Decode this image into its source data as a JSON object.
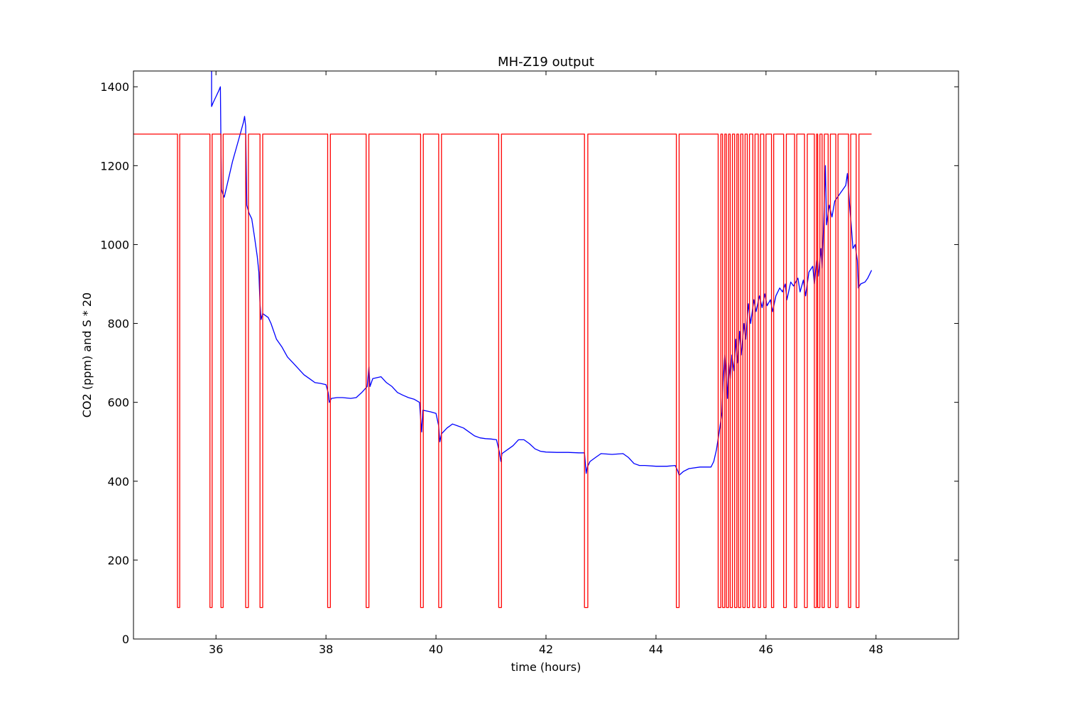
{
  "chart_data": {
    "type": "line",
    "title": "MH-Z19 output",
    "xlabel": "time (hours)",
    "ylabel": "CO2 (ppm) and S * 20",
    "xlim": [
      34.5,
      49.5
    ],
    "ylim": [
      0,
      1440
    ],
    "xticks": [
      36,
      38,
      40,
      42,
      44,
      46,
      48
    ],
    "yticks": [
      0,
      200,
      400,
      600,
      800,
      1000,
      1200,
      1400
    ],
    "grid": false,
    "legend": "none",
    "series": [
      {
        "color": "#0000ff",
        "points": [
          [
            35.92,
            1440
          ],
          [
            35.92,
            1350
          ],
          [
            35.95,
            1360
          ],
          [
            36.0,
            1375
          ],
          [
            36.05,
            1390
          ],
          [
            36.08,
            1400
          ],
          [
            36.09,
            1250
          ],
          [
            36.1,
            1140
          ],
          [
            36.12,
            1130
          ],
          [
            36.15,
            1120
          ],
          [
            36.2,
            1150
          ],
          [
            36.3,
            1210
          ],
          [
            36.4,
            1260
          ],
          [
            36.5,
            1310
          ],
          [
            36.52,
            1325
          ],
          [
            36.54,
            1300
          ],
          [
            36.56,
            1100
          ],
          [
            36.6,
            1080
          ],
          [
            36.65,
            1065
          ],
          [
            36.7,
            1020
          ],
          [
            36.75,
            970
          ],
          [
            36.78,
            930
          ],
          [
            36.8,
            850
          ],
          [
            36.82,
            810
          ],
          [
            36.85,
            825
          ],
          [
            36.95,
            815
          ],
          [
            37.0,
            800
          ],
          [
            37.1,
            760
          ],
          [
            37.2,
            740
          ],
          [
            37.3,
            715
          ],
          [
            37.4,
            700
          ],
          [
            37.5,
            685
          ],
          [
            37.6,
            670
          ],
          [
            37.7,
            660
          ],
          [
            37.8,
            650
          ],
          [
            37.9,
            648
          ],
          [
            38.0,
            645
          ],
          [
            38.04,
            625
          ],
          [
            38.06,
            600
          ],
          [
            38.1,
            610
          ],
          [
            38.2,
            612
          ],
          [
            38.3,
            612
          ],
          [
            38.45,
            610
          ],
          [
            38.55,
            612
          ],
          [
            38.65,
            625
          ],
          [
            38.75,
            640
          ],
          [
            38.78,
            690
          ],
          [
            38.8,
            640
          ],
          [
            38.85,
            660
          ],
          [
            39.0,
            665
          ],
          [
            39.1,
            650
          ],
          [
            39.2,
            640
          ],
          [
            39.3,
            625
          ],
          [
            39.4,
            618
          ],
          [
            39.5,
            612
          ],
          [
            39.6,
            608
          ],
          [
            39.7,
            600
          ],
          [
            39.72,
            560
          ],
          [
            39.74,
            525
          ],
          [
            39.76,
            580
          ],
          [
            39.9,
            576
          ],
          [
            40.0,
            572
          ],
          [
            40.05,
            540
          ],
          [
            40.07,
            500
          ],
          [
            40.1,
            520
          ],
          [
            40.2,
            535
          ],
          [
            40.3,
            545
          ],
          [
            40.4,
            540
          ],
          [
            40.5,
            535
          ],
          [
            40.6,
            525
          ],
          [
            40.7,
            515
          ],
          [
            40.8,
            510
          ],
          [
            40.9,
            508
          ],
          [
            41.0,
            507
          ],
          [
            41.1,
            505
          ],
          [
            41.15,
            475
          ],
          [
            41.18,
            450
          ],
          [
            41.2,
            470
          ],
          [
            41.3,
            480
          ],
          [
            41.4,
            490
          ],
          [
            41.5,
            505
          ],
          [
            41.6,
            505
          ],
          [
            41.7,
            495
          ],
          [
            41.8,
            482
          ],
          [
            41.9,
            476
          ],
          [
            42.0,
            474
          ],
          [
            42.2,
            473
          ],
          [
            42.4,
            473
          ],
          [
            42.6,
            472
          ],
          [
            42.7,
            472
          ],
          [
            42.73,
            420
          ],
          [
            42.75,
            435
          ],
          [
            42.8,
            450
          ],
          [
            42.9,
            460
          ],
          [
            43.0,
            470
          ],
          [
            43.2,
            468
          ],
          [
            43.4,
            470
          ],
          [
            43.5,
            460
          ],
          [
            43.6,
            445
          ],
          [
            43.7,
            440
          ],
          [
            43.8,
            440
          ],
          [
            44.0,
            438
          ],
          [
            44.2,
            438
          ],
          [
            44.35,
            440
          ],
          [
            44.4,
            425
          ],
          [
            44.42,
            415
          ],
          [
            44.5,
            425
          ],
          [
            44.6,
            432
          ],
          [
            44.8,
            436
          ],
          [
            45.0,
            436
          ],
          [
            45.05,
            450
          ],
          [
            45.1,
            480
          ],
          [
            45.15,
            525
          ],
          [
            45.2,
            575
          ],
          [
            45.22,
            650
          ],
          [
            45.25,
            720
          ],
          [
            45.28,
            660
          ],
          [
            45.3,
            610
          ],
          [
            45.32,
            700
          ],
          [
            45.35,
            660
          ],
          [
            45.38,
            720
          ],
          [
            45.42,
            680
          ],
          [
            45.45,
            760
          ],
          [
            45.48,
            700
          ],
          [
            45.52,
            780
          ],
          [
            45.55,
            720
          ],
          [
            45.6,
            800
          ],
          [
            45.63,
            760
          ],
          [
            45.68,
            850
          ],
          [
            45.72,
            800
          ],
          [
            45.78,
            860
          ],
          [
            45.82,
            830
          ],
          [
            45.88,
            870
          ],
          [
            45.93,
            840
          ],
          [
            45.98,
            875
          ],
          [
            46.02,
            845
          ],
          [
            46.08,
            860
          ],
          [
            46.12,
            830
          ],
          [
            46.18,
            870
          ],
          [
            46.25,
            890
          ],
          [
            46.3,
            880
          ],
          [
            46.35,
            900
          ],
          [
            46.38,
            860
          ],
          [
            46.45,
            905
          ],
          [
            46.5,
            895
          ],
          [
            46.58,
            915
          ],
          [
            46.62,
            880
          ],
          [
            46.68,
            910
          ],
          [
            46.72,
            870
          ],
          [
            46.78,
            930
          ],
          [
            46.85,
            945
          ],
          [
            46.88,
            900
          ],
          [
            46.92,
            960
          ],
          [
            46.95,
            920
          ],
          [
            47.0,
            990
          ],
          [
            47.02,
            940
          ],
          [
            47.05,
            1060
          ],
          [
            47.08,
            1200
          ],
          [
            47.1,
            1050
          ],
          [
            47.15,
            1100
          ],
          [
            47.2,
            1070
          ],
          [
            47.25,
            1110
          ],
          [
            47.3,
            1120
          ],
          [
            47.35,
            1130
          ],
          [
            47.4,
            1140
          ],
          [
            47.45,
            1150
          ],
          [
            47.48,
            1180
          ],
          [
            47.52,
            1100
          ],
          [
            47.55,
            1050
          ],
          [
            47.58,
            990
          ],
          [
            47.62,
            1000
          ],
          [
            47.66,
            960
          ],
          [
            47.68,
            890
          ],
          [
            47.72,
            900
          ],
          [
            47.8,
            905
          ],
          [
            47.85,
            915
          ],
          [
            47.92,
            935
          ]
        ]
      },
      {
        "color": "#ff0000",
        "points": [
          [
            34.5,
            1280
          ],
          [
            35.3,
            1280
          ],
          [
            35.3,
            80
          ],
          [
            35.34,
            80
          ],
          [
            35.34,
            1280
          ],
          [
            35.89,
            1280
          ],
          [
            35.89,
            80
          ],
          [
            35.93,
            80
          ],
          [
            35.93,
            1280
          ],
          [
            36.09,
            1280
          ],
          [
            36.09,
            80
          ],
          [
            36.13,
            80
          ],
          [
            36.13,
            1280
          ],
          [
            36.54,
            1280
          ],
          [
            36.54,
            80
          ],
          [
            36.59,
            80
          ],
          [
            36.59,
            1280
          ],
          [
            36.8,
            1280
          ],
          [
            36.8,
            80
          ],
          [
            36.85,
            80
          ],
          [
            36.85,
            1280
          ],
          [
            38.03,
            1280
          ],
          [
            38.03,
            80
          ],
          [
            38.08,
            80
          ],
          [
            38.08,
            1280
          ],
          [
            38.73,
            1280
          ],
          [
            38.73,
            80
          ],
          [
            38.78,
            80
          ],
          [
            38.78,
            1280
          ],
          [
            39.72,
            1280
          ],
          [
            39.72,
            80
          ],
          [
            39.77,
            80
          ],
          [
            39.77,
            1280
          ],
          [
            40.05,
            1280
          ],
          [
            40.05,
            80
          ],
          [
            40.1,
            80
          ],
          [
            40.1,
            1280
          ],
          [
            41.14,
            1280
          ],
          [
            41.14,
            80
          ],
          [
            41.19,
            80
          ],
          [
            41.19,
            1280
          ],
          [
            42.7,
            1280
          ],
          [
            42.7,
            80
          ],
          [
            42.76,
            80
          ],
          [
            42.76,
            1280
          ],
          [
            44.37,
            1280
          ],
          [
            44.37,
            80
          ],
          [
            44.42,
            80
          ],
          [
            44.42,
            1280
          ],
          [
            45.13,
            1280
          ],
          [
            45.13,
            80
          ],
          [
            45.18,
            80
          ],
          [
            45.18,
            1280
          ],
          [
            45.21,
            1280
          ],
          [
            45.21,
            80
          ],
          [
            45.25,
            80
          ],
          [
            45.25,
            1280
          ],
          [
            45.28,
            1280
          ],
          [
            45.28,
            80
          ],
          [
            45.32,
            80
          ],
          [
            45.32,
            1280
          ],
          [
            45.35,
            1280
          ],
          [
            45.35,
            80
          ],
          [
            45.39,
            80
          ],
          [
            45.39,
            1280
          ],
          [
            45.43,
            1280
          ],
          [
            45.43,
            80
          ],
          [
            45.47,
            80
          ],
          [
            45.47,
            1280
          ],
          [
            45.5,
            1280
          ],
          [
            45.5,
            80
          ],
          [
            45.54,
            80
          ],
          [
            45.54,
            1280
          ],
          [
            45.58,
            1280
          ],
          [
            45.58,
            80
          ],
          [
            45.62,
            80
          ],
          [
            45.62,
            1280
          ],
          [
            45.66,
            1280
          ],
          [
            45.66,
            80
          ],
          [
            45.7,
            80
          ],
          [
            45.7,
            1280
          ],
          [
            45.76,
            1280
          ],
          [
            45.76,
            80
          ],
          [
            45.8,
            80
          ],
          [
            45.8,
            1280
          ],
          [
            45.86,
            1280
          ],
          [
            45.86,
            80
          ],
          [
            45.9,
            80
          ],
          [
            45.9,
            1280
          ],
          [
            45.96,
            1280
          ],
          [
            45.96,
            80
          ],
          [
            46.0,
            80
          ],
          [
            46.0,
            1280
          ],
          [
            46.1,
            1280
          ],
          [
            46.1,
            80
          ],
          [
            46.14,
            80
          ],
          [
            46.14,
            1280
          ],
          [
            46.32,
            1280
          ],
          [
            46.32,
            80
          ],
          [
            46.37,
            80
          ],
          [
            46.37,
            1280
          ],
          [
            46.52,
            1280
          ],
          [
            46.52,
            80
          ],
          [
            46.56,
            80
          ],
          [
            46.56,
            1280
          ],
          [
            46.7,
            1280
          ],
          [
            46.7,
            80
          ],
          [
            46.75,
            80
          ],
          [
            46.75,
            1280
          ],
          [
            46.88,
            1280
          ],
          [
            46.88,
            80
          ],
          [
            46.92,
            80
          ],
          [
            46.92,
            1280
          ],
          [
            46.94,
            1280
          ],
          [
            46.94,
            80
          ],
          [
            46.98,
            80
          ],
          [
            46.98,
            1280
          ],
          [
            47.02,
            1280
          ],
          [
            47.02,
            80
          ],
          [
            47.06,
            80
          ],
          [
            47.06,
            1280
          ],
          [
            47.13,
            1280
          ],
          [
            47.13,
            80
          ],
          [
            47.17,
            80
          ],
          [
            47.17,
            1280
          ],
          [
            47.27,
            1280
          ],
          [
            47.27,
            80
          ],
          [
            47.31,
            80
          ],
          [
            47.31,
            1280
          ],
          [
            47.5,
            1280
          ],
          [
            47.5,
            80
          ],
          [
            47.54,
            80
          ],
          [
            47.54,
            1280
          ],
          [
            47.64,
            1280
          ],
          [
            47.64,
            80
          ],
          [
            47.69,
            80
          ],
          [
            47.69,
            1280
          ],
          [
            47.92,
            1280
          ]
        ]
      }
    ]
  }
}
